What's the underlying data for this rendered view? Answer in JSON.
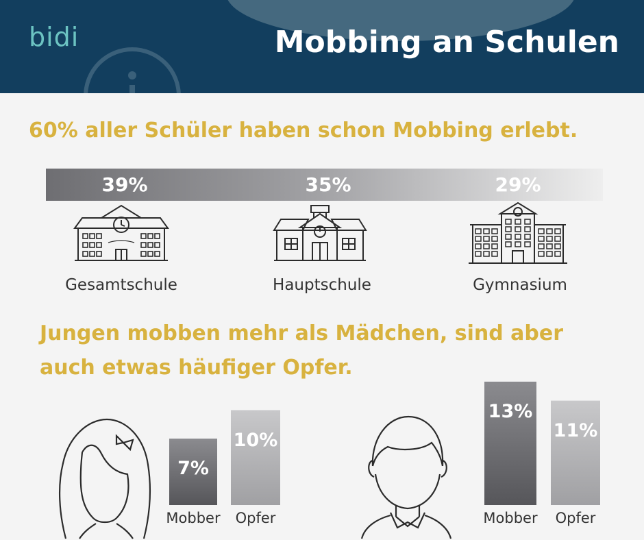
{
  "header": {
    "logo": "bidi",
    "title": "Mobbing an Schulen",
    "colors": {
      "background": "#123e5e",
      "title": "#ffffff",
      "logo": "#6cc3c2"
    },
    "icons": [
      "info-icon"
    ]
  },
  "section1": {
    "headline": "60% aller Schüler haben schon Mobbing erlebt.",
    "schools": [
      {
        "value": "39%",
        "label": "Gesamtschule",
        "icon": "school-building-icon"
      },
      {
        "value": "35%",
        "label": "Hauptschule",
        "icon": "school-house-icon"
      },
      {
        "value": "29%",
        "label": "Gymnasium",
        "icon": "large-school-icon"
      }
    ]
  },
  "section2": {
    "headline_line1": "Jungen mobben mehr als Mädchen, sind aber",
    "headline_line2": "auch etwas häufiger Opfer.",
    "girl": {
      "icon": "girl-avatar-icon",
      "bars": [
        {
          "label": "Mobber",
          "value_text": "7%",
          "value": 7
        },
        {
          "label": "Opfer",
          "value_text": "10%",
          "value": 10
        }
      ]
    },
    "boy": {
      "icon": "boy-avatar-icon",
      "bars": [
        {
          "label": "Mobber",
          "value_text": "13%",
          "value": 13
        },
        {
          "label": "Opfer",
          "value_text": "11%",
          "value": 11
        }
      ]
    }
  },
  "colors": {
    "accent": "#d8b23f",
    "background": "#f4f4f4",
    "text": "#333333"
  },
  "chart_data": [
    {
      "type": "bar",
      "title": "60% aller Schüler haben schon Mobbing erlebt.",
      "categories": [
        "Gesamtschule",
        "Hauptschule",
        "Gymnasium"
      ],
      "values": [
        39,
        35,
        29
      ]
    },
    {
      "type": "bar",
      "title": "Jungen mobben mehr als Mädchen, sind aber auch etwas häufiger Opfer.",
      "categories": [
        "Mobber",
        "Opfer"
      ],
      "series": [
        {
          "values": [
            7,
            10
          ]
        },
        {
          "values": [
            13,
            11
          ]
        }
      ]
    }
  ]
}
